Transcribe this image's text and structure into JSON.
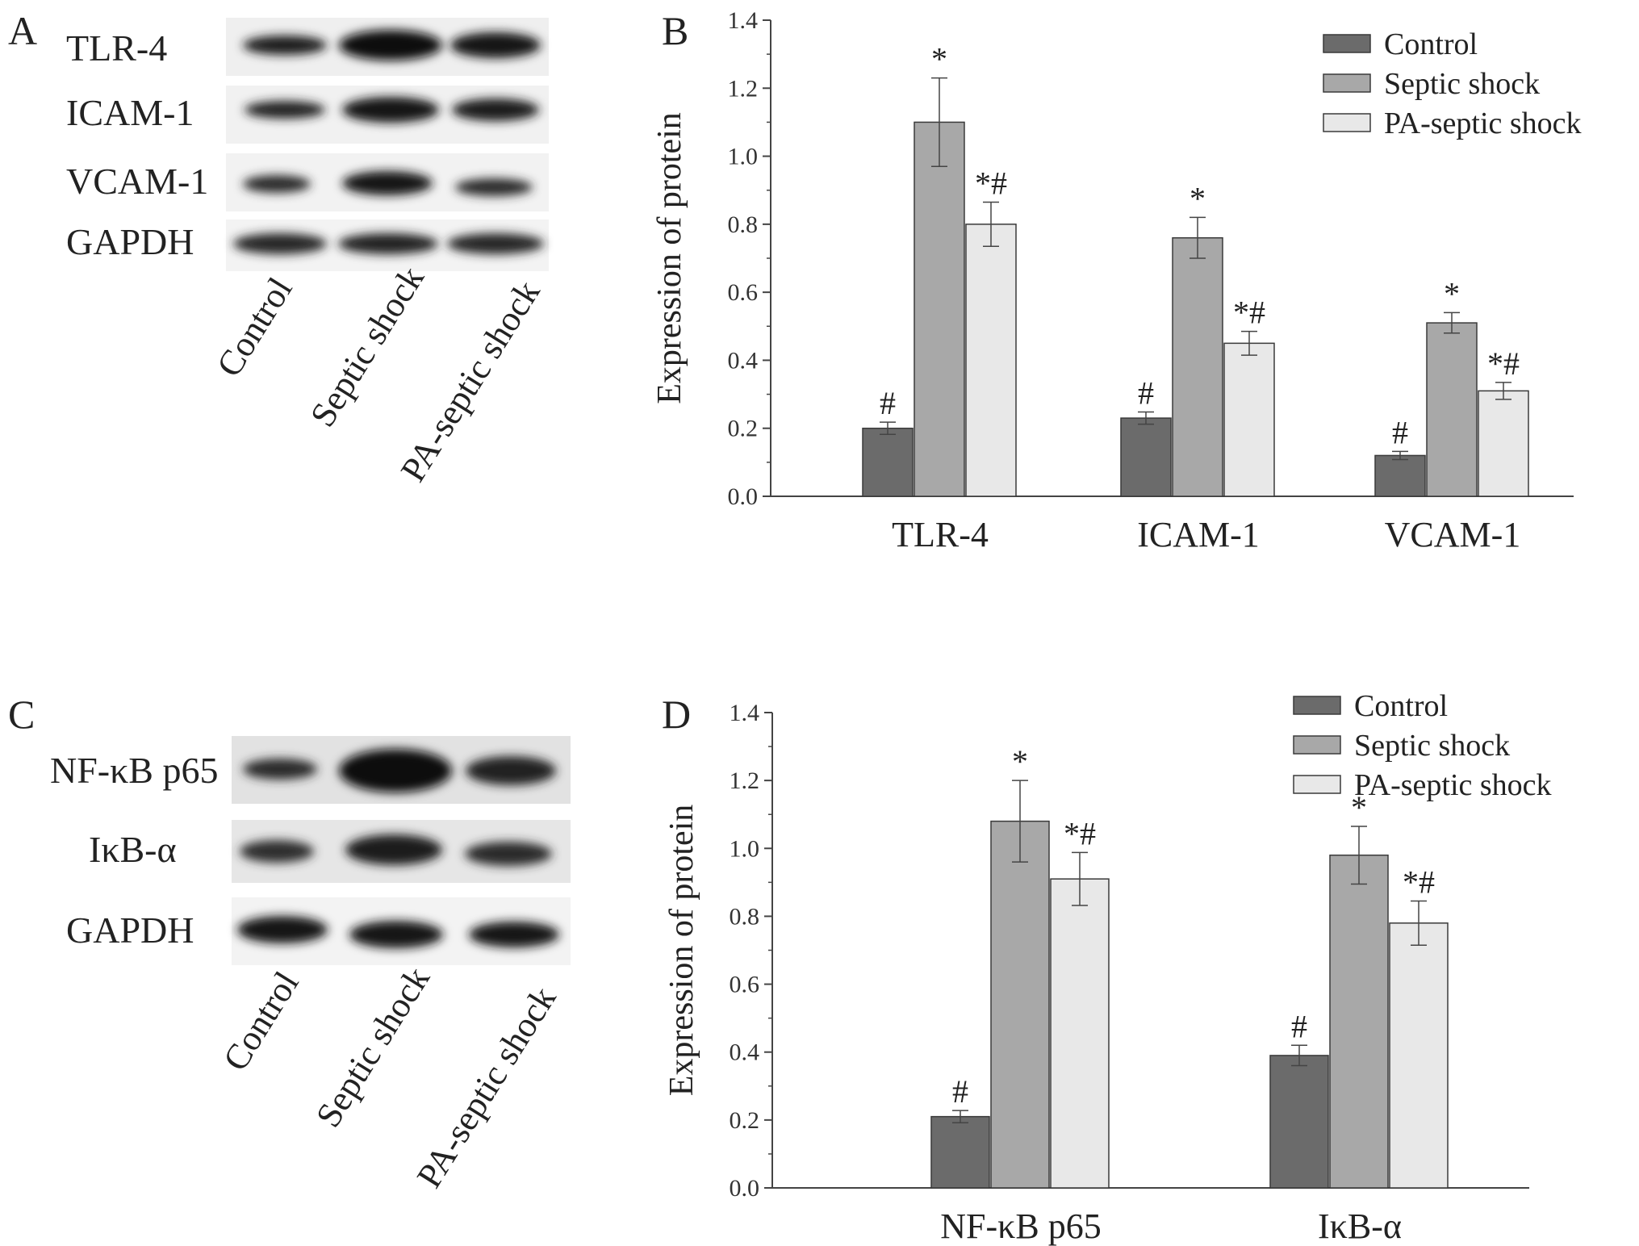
{
  "panels": {
    "A": {
      "letter": "A",
      "blot_labels": [
        "TLR-4",
        "ICAM-1",
        "VCAM-1",
        "GAPDH"
      ],
      "lane_labels": [
        "Control",
        "Septic shock",
        "PA-septic shock"
      ]
    },
    "B": {
      "letter": "B"
    },
    "C": {
      "letter": "C",
      "blot_labels": [
        "NF-κB p65",
        "IκB-α",
        "GAPDH"
      ],
      "lane_labels": [
        "Control",
        "Septic shock",
        "PA-septic shock"
      ]
    },
    "D": {
      "letter": "D"
    }
  },
  "colors": {
    "control": "#6b6b6b",
    "septic": "#a8a8a8",
    "pa_septic": "#e8e8e8",
    "axis": "#444444"
  },
  "chart_data": [
    {
      "panel": "B",
      "type": "bar",
      "categories": [
        "TLR-4",
        "ICAM-1",
        "VCAM-1"
      ],
      "ylabel": "Expression of protein",
      "ylim": [
        0,
        1.4
      ],
      "yticks": [
        "0.0",
        "0.2",
        "0.4",
        "0.6",
        "0.8",
        "1.0",
        "1.2",
        "1.4"
      ],
      "legend": "top-right",
      "series": [
        {
          "name": "Control",
          "values": [
            0.2,
            0.23,
            0.12
          ],
          "errors": [
            0.018,
            0.018,
            0.012
          ],
          "marks": [
            "#",
            "#",
            "#"
          ]
        },
        {
          "name": "Septic shock",
          "values": [
            1.1,
            0.76,
            0.51
          ],
          "errors": [
            0.13,
            0.06,
            0.03
          ],
          "marks": [
            "*",
            "*",
            "*"
          ]
        },
        {
          "name": "PA-septic shock",
          "values": [
            0.8,
            0.45,
            0.31
          ],
          "errors": [
            0.065,
            0.035,
            0.025
          ],
          "marks": [
            "*#",
            "*#",
            "*#"
          ]
        }
      ]
    },
    {
      "panel": "D",
      "type": "bar",
      "categories": [
        "NF-κB p65",
        "IκB-α"
      ],
      "ylabel": "Expression of protein",
      "ylim": [
        0,
        1.4
      ],
      "yticks": [
        "0.0",
        "0.2",
        "0.4",
        "0.6",
        "0.8",
        "1.0",
        "1.2",
        "1.4"
      ],
      "legend": "top-right",
      "series": [
        {
          "name": "Control",
          "values": [
            0.21,
            0.39
          ],
          "errors": [
            0.018,
            0.03
          ],
          "marks": [
            "#",
            "#"
          ]
        },
        {
          "name": "Septic shock",
          "values": [
            1.08,
            0.98
          ],
          "errors": [
            0.12,
            0.085
          ],
          "marks": [
            "*",
            "*"
          ]
        },
        {
          "name": "PA-septic shock",
          "values": [
            0.91,
            0.78
          ],
          "errors": [
            0.078,
            0.065
          ],
          "marks": [
            "*#",
            "*#"
          ]
        }
      ]
    }
  ]
}
